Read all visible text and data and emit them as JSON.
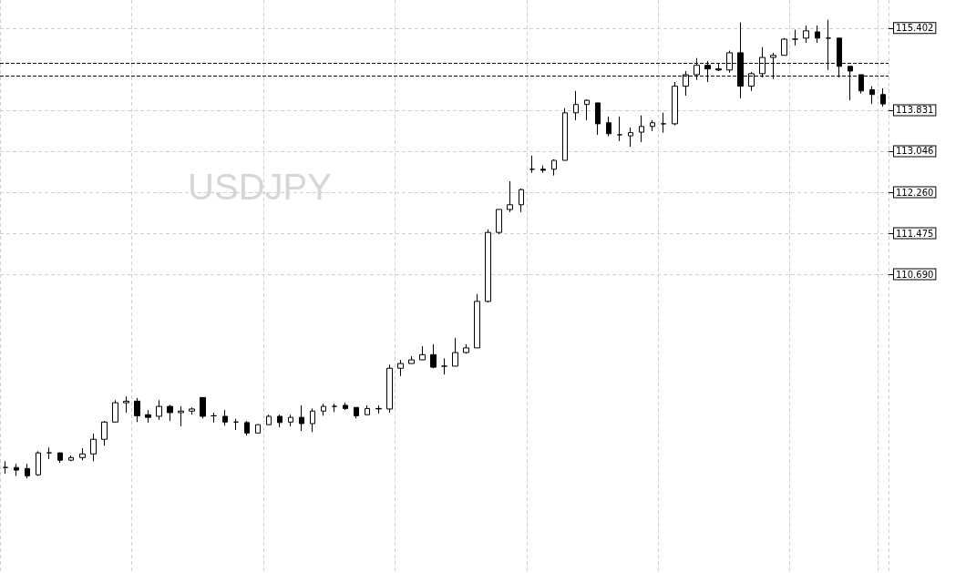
{
  "chart_data": {
    "type": "candlestick",
    "title": "USDJPY",
    "categories": [
      null,
      null,
      null,
      null,
      null,
      null,
      null,
      null,
      null,
      null,
      null,
      null,
      null,
      null,
      null,
      null,
      null,
      null,
      null,
      null,
      null,
      null,
      null,
      null,
      null,
      null,
      null,
      null,
      null,
      null,
      null,
      null,
      null,
      null,
      null,
      null,
      null,
      null,
      null,
      null,
      null,
      null,
      null,
      null,
      null,
      null,
      null,
      null,
      null,
      null,
      null,
      null,
      null,
      null,
      null,
      null,
      null,
      null,
      null,
      null,
      null,
      null,
      null,
      null,
      null,
      null,
      null,
      null,
      null,
      null,
      null,
      null,
      null,
      null,
      null,
      null,
      null,
      null,
      null,
      null,
      null
    ],
    "ohlc": [
      [
        106.99,
        107.11,
        106.87,
        106.99
      ],
      [
        106.99,
        107.06,
        106.83,
        106.94
      ],
      [
        106.97,
        107.06,
        106.78,
        106.83
      ],
      [
        106.85,
        107.3,
        106.83,
        107.27
      ],
      [
        107.27,
        107.37,
        107.15,
        107.27
      ],
      [
        107.27,
        107.27,
        107.08,
        107.13
      ],
      [
        107.13,
        107.22,
        107.11,
        107.18
      ],
      [
        107.18,
        107.36,
        107.13,
        107.25
      ],
      [
        107.25,
        107.64,
        107.11,
        107.53
      ],
      [
        107.53,
        107.88,
        107.41,
        107.86
      ],
      [
        107.86,
        108.28,
        107.86,
        108.23
      ],
      [
        108.23,
        108.35,
        108.04,
        108.26
      ],
      [
        108.26,
        108.32,
        107.86,
        107.98
      ],
      [
        108.0,
        108.09,
        107.85,
        107.95
      ],
      [
        107.97,
        108.28,
        107.9,
        108.16
      ],
      [
        108.16,
        108.19,
        107.88,
        108.04
      ],
      [
        108.04,
        108.16,
        107.78,
        108.07
      ],
      [
        108.07,
        108.14,
        108.0,
        108.11
      ],
      [
        108.33,
        108.33,
        107.93,
        107.97
      ],
      [
        107.98,
        108.04,
        107.85,
        107.98
      ],
      [
        107.97,
        108.09,
        107.79,
        107.86
      ],
      [
        107.86,
        107.92,
        107.71,
        107.86
      ],
      [
        107.85,
        107.88,
        107.6,
        107.65
      ],
      [
        107.65,
        107.81,
        107.65,
        107.81
      ],
      [
        107.81,
        108.0,
        107.81,
        107.97
      ],
      [
        107.97,
        108.0,
        107.76,
        107.85
      ],
      [
        107.86,
        108.0,
        107.78,
        107.95
      ],
      [
        107.95,
        108.18,
        107.69,
        107.83
      ],
      [
        107.83,
        108.12,
        107.67,
        108.07
      ],
      [
        108.07,
        108.21,
        107.98,
        108.16
      ],
      [
        108.16,
        108.21,
        108.05,
        108.16
      ],
      [
        108.18,
        108.23,
        108.09,
        108.12
      ],
      [
        108.14,
        108.14,
        107.93,
        107.98
      ],
      [
        108.0,
        108.18,
        108.0,
        108.12
      ],
      [
        108.12,
        108.18,
        108.02,
        108.11
      ],
      [
        108.11,
        108.96,
        108.04,
        108.89
      ],
      [
        108.89,
        109.05,
        108.74,
        108.98
      ],
      [
        108.98,
        109.12,
        108.98,
        109.05
      ],
      [
        109.05,
        109.31,
        109.05,
        109.15
      ],
      [
        109.15,
        109.35,
        108.89,
        108.91
      ],
      [
        108.93,
        109.08,
        108.77,
        108.93
      ],
      [
        108.93,
        109.47,
        108.93,
        109.19
      ],
      [
        109.19,
        109.35,
        109.17,
        109.28
      ],
      [
        109.28,
        110.31,
        109.28,
        110.17
      ],
      [
        110.17,
        111.55,
        110.15,
        111.49
      ],
      [
        111.49,
        111.93,
        111.46,
        111.93
      ],
      [
        111.93,
        112.47,
        111.88,
        112.02
      ],
      [
        112.02,
        112.33,
        111.88,
        112.31
      ],
      [
        112.7,
        112.96,
        112.63,
        112.7
      ],
      [
        112.7,
        112.77,
        112.63,
        112.68
      ],
      [
        112.7,
        112.89,
        112.58,
        112.87
      ],
      [
        112.87,
        113.87,
        112.87,
        113.78
      ],
      [
        113.78,
        114.2,
        113.64,
        113.94
      ],
      [
        113.94,
        114.04,
        113.64,
        114.02
      ],
      [
        113.97,
        113.97,
        113.36,
        113.57
      ],
      [
        113.59,
        113.71,
        113.33,
        113.38
      ],
      [
        113.36,
        113.71,
        113.24,
        113.36
      ],
      [
        113.34,
        113.5,
        113.13,
        113.4
      ],
      [
        113.41,
        113.73,
        113.22,
        113.52
      ],
      [
        113.52,
        113.64,
        113.43,
        113.59
      ],
      [
        113.57,
        113.78,
        113.4,
        113.57
      ],
      [
        113.57,
        114.37,
        113.54,
        114.29
      ],
      [
        114.29,
        114.58,
        114.11,
        114.51
      ],
      [
        114.51,
        114.83,
        114.41,
        114.69
      ],
      [
        114.69,
        114.77,
        114.37,
        114.62
      ],
      [
        114.62,
        114.72,
        114.58,
        114.6
      ],
      [
        114.6,
        114.97,
        114.55,
        114.93
      ],
      [
        114.93,
        115.51,
        114.06,
        114.29
      ],
      [
        114.29,
        114.56,
        114.2,
        114.53
      ],
      [
        114.53,
        115.04,
        114.46,
        114.84
      ],
      [
        114.84,
        114.93,
        114.43,
        114.88
      ],
      [
        114.88,
        115.21,
        114.88,
        115.19
      ],
      [
        115.19,
        115.37,
        115.07,
        115.19
      ],
      [
        115.21,
        115.45,
        115.12,
        115.35
      ],
      [
        115.33,
        115.45,
        115.12,
        115.21
      ],
      [
        115.21,
        115.56,
        114.6,
        115.21
      ],
      [
        115.21,
        115.21,
        114.46,
        114.67
      ],
      [
        114.67,
        114.67,
        114.02,
        114.58
      ],
      [
        114.51,
        114.51,
        114.15,
        114.2
      ],
      [
        114.22,
        114.29,
        113.95,
        114.13
      ],
      [
        114.13,
        114.25,
        113.9,
        113.95
      ]
    ],
    "ylim": [
      104.97,
      115.94
    ],
    "yticks": [
      {
        "value": 110.69,
        "label": "110.690"
      },
      111.475,
      {
        "value": 112.26,
        "label": "112.260"
      },
      113.046,
      113.831,
      115.402
    ],
    "grid": true,
    "ref_lines": [
      {
        "axis": "y",
        "value": 114.74,
        "color": "#000000",
        "line_style": "dashed"
      },
      {
        "axis": "y",
        "value": 114.48,
        "color": "#000000",
        "line_style": "dashed"
      }
    ]
  }
}
